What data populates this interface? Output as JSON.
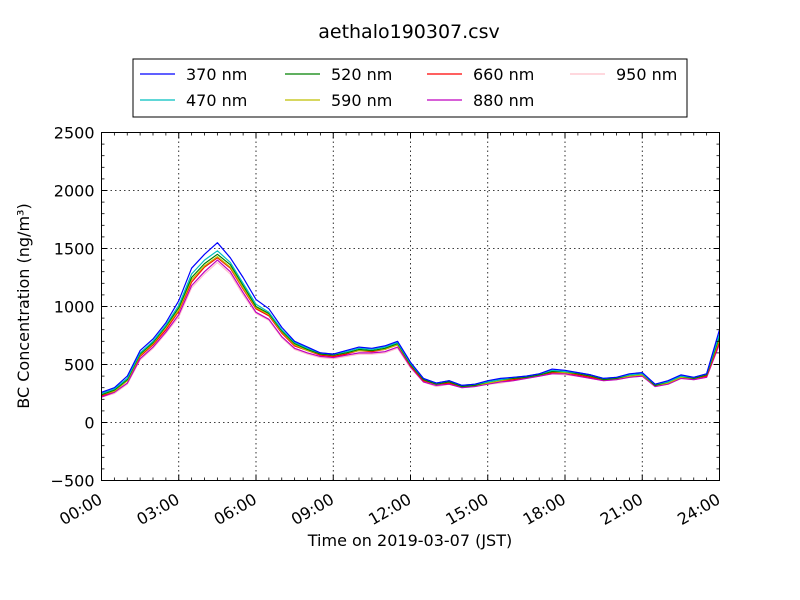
{
  "chart_data": {
    "type": "line",
    "title": "aethalo190307.csv",
    "xlabel": "Time on 2019-03-07 (JST)",
    "ylabel": "BC Concentration (ng/m³)",
    "xlim": [
      0,
      24
    ],
    "ylim": [
      -500,
      2500
    ],
    "grid": true,
    "legend_position": "top-center",
    "x_ticks": [
      {
        "value": 0,
        "label": "00:00"
      },
      {
        "value": 3,
        "label": "03:00"
      },
      {
        "value": 6,
        "label": "06:00"
      },
      {
        "value": 9,
        "label": "09:00"
      },
      {
        "value": 12,
        "label": "12:00"
      },
      {
        "value": 15,
        "label": "15:00"
      },
      {
        "value": 18,
        "label": "18:00"
      },
      {
        "value": 21,
        "label": "21:00"
      },
      {
        "value": 24,
        "label": "24:00"
      }
    ],
    "y_ticks": [
      {
        "value": 2500,
        "label": "2500"
      },
      {
        "value": 2000,
        "label": "2000"
      },
      {
        "value": 1500,
        "label": "1500"
      },
      {
        "value": 1000,
        "label": "1000"
      },
      {
        "value": 500,
        "label": "500"
      },
      {
        "value": 0,
        "label": "0"
      },
      {
        "value": -500,
        "label": "−500"
      }
    ],
    "x": [
      0,
      0.5,
      1,
      1.5,
      2,
      2.5,
      3,
      3.5,
      4,
      4.5,
      5,
      5.5,
      6,
      6.5,
      7,
      7.5,
      8,
      8.5,
      9,
      9.5,
      10,
      10.5,
      11,
      11.5,
      12,
      12.5,
      13,
      13.5,
      14,
      14.5,
      15,
      15.5,
      16,
      16.5,
      17,
      17.5,
      18,
      18.5,
      19,
      19.5,
      20,
      20.5,
      21,
      21.5,
      22,
      22.5,
      23,
      23.5,
      24
    ],
    "series": [
      {
        "name": "370 nm",
        "color": "#0000ff",
        "values": [
          260,
          300,
          400,
          620,
          720,
          860,
          1050,
          1330,
          1450,
          1550,
          1420,
          1250,
          1060,
          980,
          820,
          700,
          650,
          600,
          590,
          620,
          650,
          640,
          660,
          700,
          520,
          380,
          340,
          360,
          320,
          330,
          360,
          380,
          390,
          400,
          420,
          460,
          450,
          430,
          410,
          380,
          390,
          420,
          430,
          330,
          360,
          410,
          390,
          420,
          800
        ]
      },
      {
        "name": "470 nm",
        "color": "#00bfbf",
        "values": [
          250,
          290,
          380,
          600,
          700,
          840,
          1010,
          1280,
          1400,
          1480,
          1380,
          1200,
          1020,
          950,
          800,
          690,
          640,
          600,
          590,
          610,
          640,
          630,
          650,
          690,
          510,
          380,
          340,
          360,
          320,
          330,
          350,
          370,
          390,
          400,
          420,
          450,
          440,
          430,
          410,
          380,
          390,
          410,
          420,
          330,
          350,
          400,
          390,
          420,
          760
        ]
      },
      {
        "name": "520 nm",
        "color": "#008000",
        "values": [
          240,
          280,
          370,
          590,
          690,
          830,
          990,
          1250,
          1370,
          1450,
          1360,
          1180,
          1000,
          940,
          790,
          680,
          630,
          590,
          580,
          600,
          630,
          620,
          640,
          680,
          500,
          370,
          330,
          350,
          310,
          320,
          350,
          370,
          380,
          390,
          410,
          440,
          440,
          420,
          400,
          370,
          380,
          410,
          420,
          320,
          350,
          400,
          380,
          410,
          740
        ]
      },
      {
        "name": "590 nm",
        "color": "#bfbf00",
        "values": [
          240,
          270,
          360,
          580,
          680,
          820,
          970,
          1230,
          1350,
          1430,
          1340,
          1160,
          990,
          930,
          780,
          670,
          620,
          590,
          580,
          600,
          620,
          620,
          630,
          670,
          500,
          370,
          330,
          350,
          310,
          320,
          340,
          360,
          380,
          390,
          410,
          440,
          430,
          420,
          400,
          370,
          380,
          400,
          410,
          320,
          340,
          390,
          380,
          410,
          720
        ]
      },
      {
        "name": "660 nm",
        "color": "#ff0000",
        "values": [
          230,
          270,
          360,
          570,
          670,
          800,
          960,
          1210,
          1340,
          1420,
          1330,
          1150,
          980,
          920,
          770,
          660,
          620,
          580,
          570,
          590,
          620,
          610,
          630,
          670,
          490,
          360,
          330,
          340,
          310,
          320,
          340,
          360,
          370,
          390,
          410,
          430,
          430,
          410,
          390,
          370,
          380,
          400,
          410,
          320,
          340,
          390,
          380,
          400,
          700
        ]
      },
      {
        "name": "880 nm",
        "color": "#bf00bf",
        "values": [
          220,
          260,
          340,
          550,
          650,
          780,
          930,
          1180,
          1300,
          1400,
          1300,
          1120,
          950,
          890,
          740,
          640,
          600,
          570,
          560,
          580,
          600,
          600,
          610,
          650,
          480,
          350,
          320,
          330,
          300,
          310,
          330,
          350,
          360,
          380,
          400,
          420,
          420,
          400,
          380,
          360,
          370,
          390,
          400,
          310,
          330,
          380,
          370,
          390,
          680
        ]
      },
      {
        "name": "950 nm",
        "color": "#ffc0cb",
        "values": [
          220,
          250,
          330,
          540,
          640,
          770,
          910,
          1160,
          1280,
          1380,
          1280,
          1100,
          940,
          880,
          730,
          630,
          590,
          560,
          550,
          570,
          590,
          590,
          600,
          640,
          470,
          350,
          310,
          330,
          300,
          310,
          330,
          340,
          360,
          380,
          400,
          420,
          410,
          400,
          380,
          360,
          370,
          390,
          400,
          310,
          330,
          380,
          370,
          390,
          670
        ]
      }
    ]
  }
}
